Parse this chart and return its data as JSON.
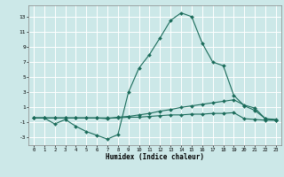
{
  "xlabel": "Humidex (Indice chaleur)",
  "bg_color": "#cce8e8",
  "grid_color": "#ffffff",
  "line_color": "#1a6b5a",
  "xlim": [
    -0.5,
    23.5
  ],
  "ylim": [
    -4.0,
    14.5
  ],
  "xticks": [
    0,
    1,
    2,
    3,
    4,
    5,
    6,
    7,
    8,
    9,
    10,
    11,
    12,
    13,
    14,
    15,
    16,
    17,
    18,
    19,
    20,
    21,
    22,
    23
  ],
  "yticks": [
    -3,
    -1,
    1,
    3,
    5,
    7,
    9,
    11,
    13
  ],
  "line1_x": [
    0,
    1,
    2,
    3,
    4,
    5,
    6,
    7,
    8,
    9,
    10,
    11,
    12,
    13,
    14,
    15,
    16,
    17,
    18,
    19,
    20,
    21,
    22,
    23
  ],
  "line1_y": [
    -0.4,
    -0.4,
    -1.2,
    -0.6,
    -1.5,
    -2.2,
    -2.7,
    -3.2,
    -2.6,
    3.0,
    6.2,
    8.0,
    10.2,
    12.5,
    13.5,
    13.0,
    9.5,
    7.0,
    6.5,
    2.6,
    1.2,
    0.6,
    -0.5,
    -0.7
  ],
  "line2_x": [
    0,
    1,
    2,
    3,
    4,
    5,
    6,
    7,
    8,
    9,
    10,
    11,
    12,
    13,
    14,
    15,
    16,
    17,
    18,
    19,
    20,
    21,
    22,
    23
  ],
  "line2_y": [
    -0.4,
    -0.4,
    -0.4,
    -0.4,
    -0.4,
    -0.4,
    -0.4,
    -0.5,
    -0.3,
    -0.2,
    0.0,
    0.2,
    0.5,
    0.7,
    1.0,
    1.2,
    1.4,
    1.6,
    1.8,
    2.0,
    1.3,
    0.9,
    -0.5,
    -0.6
  ],
  "line3_x": [
    0,
    1,
    2,
    3,
    4,
    5,
    6,
    7,
    8,
    9,
    10,
    11,
    12,
    13,
    14,
    15,
    16,
    17,
    18,
    19,
    20,
    21,
    22,
    23
  ],
  "line3_y": [
    -0.4,
    -0.4,
    -0.4,
    -0.4,
    -0.4,
    -0.4,
    -0.4,
    -0.4,
    -0.4,
    -0.3,
    -0.3,
    -0.2,
    -0.1,
    0.0,
    0.0,
    0.1,
    0.1,
    0.2,
    0.2,
    0.3,
    -0.5,
    -0.6,
    -0.7,
    -0.7
  ]
}
